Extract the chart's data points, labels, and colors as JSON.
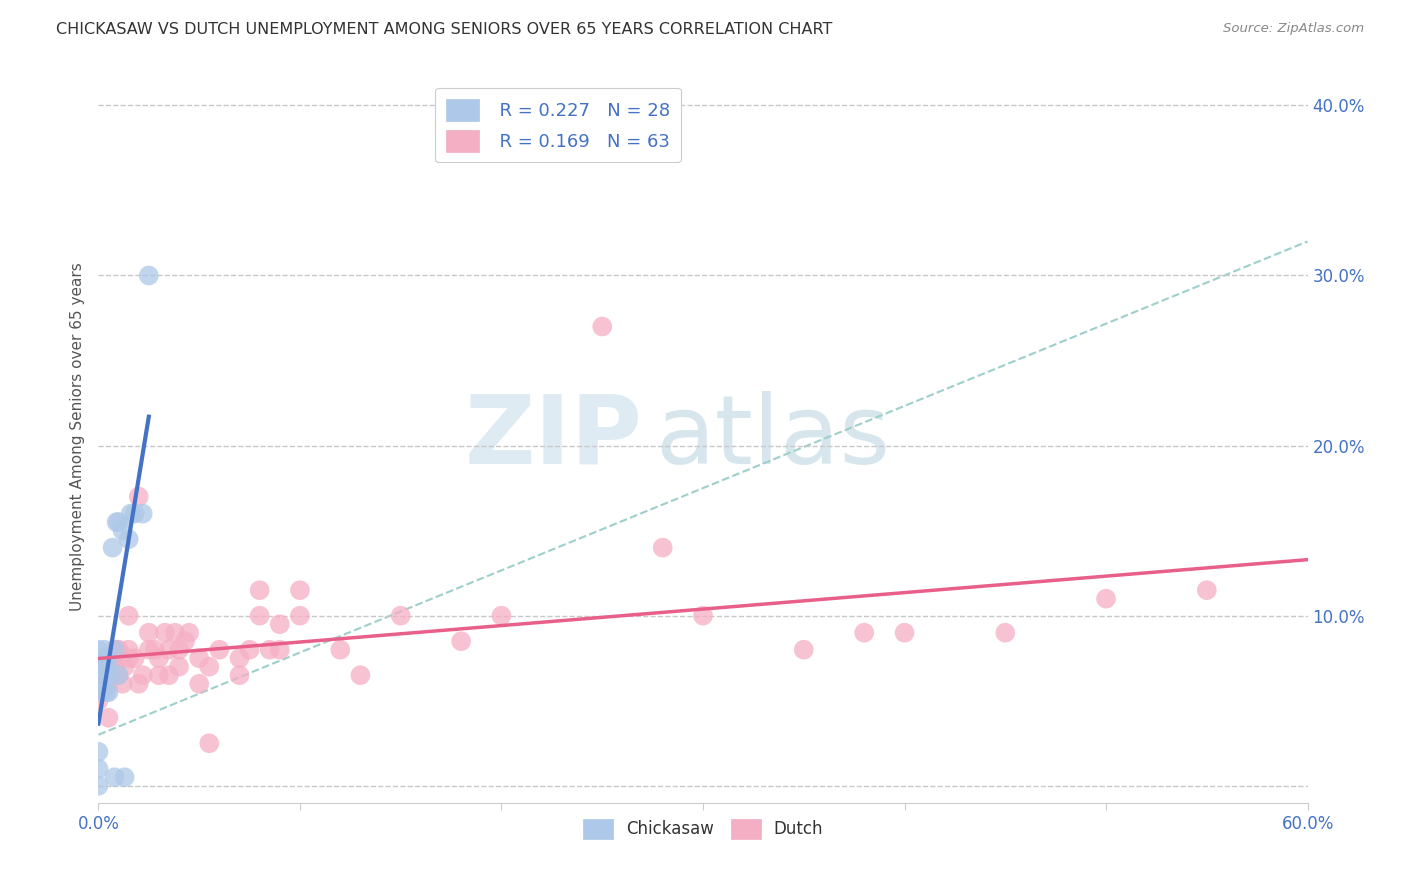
{
  "title": "CHICKASAW VS DUTCH UNEMPLOYMENT AMONG SENIORS OVER 65 YEARS CORRELATION CHART",
  "source": "Source: ZipAtlas.com",
  "ylabel": "Unemployment Among Seniors over 65 years",
  "xlim": [
    0.0,
    0.6
  ],
  "ylim": [
    -0.01,
    0.42
  ],
  "xticks": [
    0.0,
    0.1,
    0.2,
    0.3,
    0.4,
    0.5,
    0.6
  ],
  "yticks": [
    0.0,
    0.1,
    0.2,
    0.3,
    0.4
  ],
  "legend_r_chickasaw": "R = 0.227",
  "legend_n_chickasaw": "N = 28",
  "legend_r_dutch": "R = 0.169",
  "legend_n_dutch": "N = 63",
  "chickasaw_color": "#adc8e8",
  "dutch_color": "#f5afc4",
  "trendline_chickasaw_color": "#4472c4",
  "trendline_dutch_color": "#e8608a",
  "trendline_dashed_color": "#9ecfca",
  "watermark_zip": "ZIP",
  "watermark_atlas": "atlas",
  "background_color": "#ffffff",
  "grid_color": "#c8c8c8",
  "title_color": "#333333",
  "source_color": "#888888",
  "tick_label_color": "#4472c4",
  "ylabel_color": "#555555",
  "legend_label_color": "#4472c4",
  "chickasaw_x": [
    0.0,
    0.0,
    0.0,
    0.0,
    0.0,
    0.0,
    0.002,
    0.002,
    0.002,
    0.003,
    0.004,
    0.004,
    0.005,
    0.005,
    0.006,
    0.007,
    0.008,
    0.008,
    0.009,
    0.01,
    0.01,
    0.012,
    0.013,
    0.015,
    0.016,
    0.018,
    0.022,
    0.025
  ],
  "chickasaw_y": [
    0.0,
    0.01,
    0.02,
    0.06,
    0.07,
    0.08,
    0.055,
    0.065,
    0.07,
    0.08,
    0.055,
    0.075,
    0.055,
    0.07,
    0.065,
    0.14,
    0.005,
    0.08,
    0.155,
    0.065,
    0.155,
    0.15,
    0.005,
    0.145,
    0.16,
    0.16,
    0.16,
    0.3
  ],
  "dutch_x": [
    0.0,
    0.0,
    0.0,
    0.0,
    0.0,
    0.005,
    0.005,
    0.007,
    0.008,
    0.009,
    0.01,
    0.01,
    0.012,
    0.013,
    0.015,
    0.015,
    0.015,
    0.018,
    0.02,
    0.02,
    0.022,
    0.025,
    0.025,
    0.028,
    0.03,
    0.03,
    0.033,
    0.035,
    0.035,
    0.038,
    0.04,
    0.04,
    0.043,
    0.045,
    0.05,
    0.05,
    0.055,
    0.055,
    0.06,
    0.07,
    0.07,
    0.075,
    0.08,
    0.08,
    0.085,
    0.09,
    0.09,
    0.1,
    0.1,
    0.12,
    0.13,
    0.15,
    0.18,
    0.2,
    0.25,
    0.28,
    0.3,
    0.35,
    0.38,
    0.4,
    0.45,
    0.5,
    0.55
  ],
  "dutch_y": [
    0.05,
    0.055,
    0.06,
    0.065,
    0.07,
    0.04,
    0.06,
    0.075,
    0.07,
    0.08,
    0.065,
    0.08,
    0.06,
    0.07,
    0.075,
    0.08,
    0.1,
    0.075,
    0.06,
    0.17,
    0.065,
    0.08,
    0.09,
    0.08,
    0.065,
    0.075,
    0.09,
    0.065,
    0.08,
    0.09,
    0.07,
    0.08,
    0.085,
    0.09,
    0.06,
    0.075,
    0.025,
    0.07,
    0.08,
    0.065,
    0.075,
    0.08,
    0.1,
    0.115,
    0.08,
    0.095,
    0.08,
    0.1,
    0.115,
    0.08,
    0.065,
    0.1,
    0.085,
    0.1,
    0.27,
    0.14,
    0.1,
    0.08,
    0.09,
    0.09,
    0.09,
    0.11,
    0.115
  ]
}
